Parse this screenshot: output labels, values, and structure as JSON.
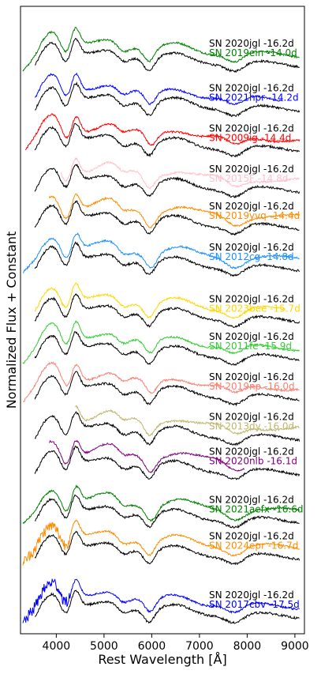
{
  "chart_data": {
    "type": "line",
    "title": "",
    "xlabel": "Rest Wavelength [Å]",
    "ylabel": "Normalized Flux + Constant",
    "xlim": [
      3250,
      9200
    ],
    "ylim": [
      0,
      100
    ],
    "x_ticks": [
      4000,
      5000,
      6000,
      7000,
      8000,
      9000
    ],
    "x_tick_labels": [
      "4000",
      "5000",
      "6000",
      "7000",
      "8000",
      "9000"
    ],
    "y_ticks_visible": false,
    "grid": false,
    "reference": {
      "label": "SN 2020jgl -16.2d",
      "color": "#000000",
      "x_range": [
        3550,
        9100
      ]
    },
    "panels": [
      {
        "label": "SN 2019ein -14.0d",
        "color": "#008000",
        "x_range": [
          3300,
          9100
        ],
        "offset": 93.3
      },
      {
        "label": "SN 2021hpr -14.2d",
        "color": "#0000ff",
        "x_range": [
          3550,
          8750
        ],
        "offset": 86.2
      },
      {
        "label": "SN 2009ig -14.4d",
        "color": "#ff0000",
        "x_range": [
          3350,
          9100
        ],
        "offset": 79.8
      },
      {
        "label": "SN 2015F -14.8d",
        "color": "#ffc0cb",
        "x_range": [
          4100,
          9100
        ],
        "offset": 73.3
      },
      {
        "label": "SN 2019yvq -14.4d",
        "color": "#ff8c00",
        "x_range": [
          3850,
          9100
        ],
        "offset": 67.4
      },
      {
        "label": "SN 2012cg -14.8d",
        "color": "#1e90ff",
        "x_range": [
          3300,
          9100
        ],
        "offset": 60.8
      },
      {
        "label": "SN 2023bee -15.7d",
        "color": "#ffd700",
        "x_range": [
          3550,
          8800
        ],
        "offset": 52.6
      },
      {
        "label": "SN 2011fe -15.9d",
        "color": "#32cd32",
        "x_range": [
          3300,
          9100
        ],
        "offset": 46.6
      },
      {
        "label": "SN 2019np -16.0d",
        "color": "#fa8072",
        "x_range": [
          3300,
          9100
        ],
        "offset": 40.2
      },
      {
        "label": "SN 2013dy -16.0d",
        "color": "#bdb76b",
        "x_range": [
          4400,
          9100
        ],
        "offset": 33.8
      },
      {
        "label": "SN 2020nlb -16.1d",
        "color": "#800080",
        "x_range": [
          3850,
          7950
        ],
        "offset": 28.3
      },
      {
        "label": "SN 2021aefx -16.6d",
        "color": "#008000",
        "x_range": [
          3300,
          9100
        ],
        "offset": 20.6
      },
      {
        "label": "SN 2024epr -16.7d",
        "color": "#ff8c00",
        "x_range": [
          3300,
          9100
        ],
        "offset": 14.8
      },
      {
        "label": "SN 2017cbv -17.5d",
        "color": "#0000ff",
        "x_range": [
          3300,
          9100
        ],
        "offset": 5.4
      }
    ]
  }
}
